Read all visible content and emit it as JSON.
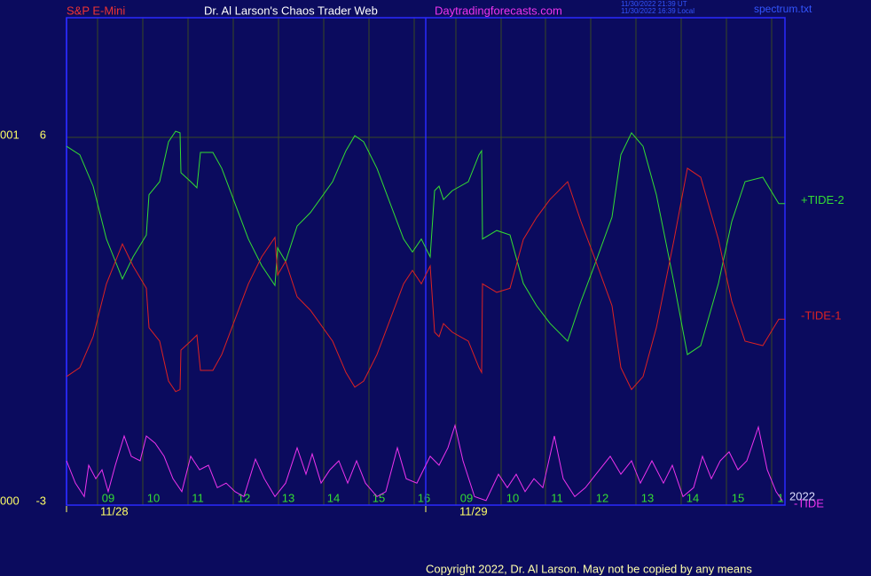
{
  "chart_data": {
    "type": "line",
    "title": "Dr. Al Larson's Chaos Trader Web",
    "instrument": "S&P E-Mini",
    "site": "Daytradingforecasts.com",
    "timestamps": [
      "11/30/2022 21:39 UT",
      "11/30/2022 16:39 Local"
    ],
    "file": "spectrum.txt",
    "copyright": "Copyright 2022, Dr. Al Larson. May not be copied by any means",
    "annotation": "2022",
    "y_prefixes": [
      "001",
      "000"
    ],
    "xlim": [
      0,
      810
    ],
    "ylim": [
      -3.04,
      8.94
    ],
    "yticks": [
      6,
      -3
    ],
    "xticks": [
      {
        "value": 47,
        "label": "09"
      },
      {
        "value": 98,
        "label": "10"
      },
      {
        "value": 148,
        "label": "11"
      },
      {
        "value": 200,
        "label": "12"
      },
      {
        "value": 250,
        "label": "13"
      },
      {
        "value": 301,
        "label": "14"
      },
      {
        "value": 352,
        "label": "15"
      },
      {
        "value": 403,
        "label": "16"
      },
      {
        "value": 451,
        "label": "09"
      },
      {
        "value": 503,
        "label": "10"
      },
      {
        "value": 553,
        "label": "11"
      },
      {
        "value": 604,
        "label": "12"
      },
      {
        "value": 655,
        "label": "13"
      },
      {
        "value": 706,
        "label": "14"
      },
      {
        "value": 757,
        "label": "15"
      },
      {
        "value": 805,
        "label": "1"
      }
    ],
    "xgrid": [
      35,
      86,
      137,
      188,
      239,
      290,
      341,
      392,
      439,
      490,
      540,
      591,
      642,
      693,
      744,
      795
    ],
    "days": [
      {
        "value": 0,
        "label": "11/28",
        "label_x": 38
      },
      {
        "value": 405,
        "label": "11/29",
        "label_x": 443
      }
    ],
    "grid": true,
    "series": [
      {
        "name": "+TIDE-2",
        "color": "#33dd33",
        "x": [
          0,
          15,
          30,
          45,
          63,
          75,
          90,
          93,
          105,
          115,
          123,
          128,
          129,
          140,
          147,
          151,
          165,
          175,
          190,
          205,
          220,
          235,
          238,
          247,
          260,
          275,
          300,
          315,
          325,
          335,
          350,
          365,
          380,
          390,
          400,
          410,
          415,
          420,
          425,
          435,
          453,
          465,
          468,
          469,
          485,
          500,
          515,
          530,
          545,
          565,
          580,
          595,
          615,
          625,
          637,
          650,
          665,
          685,
          700,
          715,
          735,
          750,
          765,
          785,
          803,
          810
        ],
        "values": [
          5.78,
          5.57,
          4.8,
          3.5,
          2.52,
          3.06,
          3.6,
          4.59,
          4.91,
          5.89,
          6.15,
          6.11,
          5.13,
          4.91,
          4.76,
          5.63,
          5.63,
          5.24,
          4.37,
          3.5,
          2.85,
          2.36,
          3.28,
          2.95,
          3.82,
          4.15,
          4.91,
          5.67,
          6.04,
          5.89,
          5.24,
          4.37,
          3.5,
          3.18,
          3.5,
          3.06,
          4.69,
          4.8,
          4.47,
          4.69,
          4.91,
          5.57,
          5.67,
          3.5,
          3.71,
          3.6,
          2.41,
          1.86,
          1.43,
          0.99,
          1.97,
          2.84,
          4.04,
          5.57,
          6.11,
          5.78,
          4.59,
          2.41,
          0.66,
          0.88,
          2.41,
          3.93,
          4.91,
          5.02,
          4.37,
          4.37
        ]
      },
      {
        "name": "-TIDE-1",
        "color": "#dd2222",
        "x": [
          0,
          15,
          30,
          45,
          63,
          75,
          90,
          93,
          105,
          115,
          123,
          128,
          129,
          140,
          147,
          151,
          165,
          175,
          190,
          205,
          220,
          235,
          238,
          247,
          260,
          275,
          300,
          315,
          325,
          335,
          350,
          365,
          380,
          390,
          400,
          410,
          415,
          420,
          425,
          435,
          453,
          465,
          468,
          469,
          485,
          500,
          515,
          530,
          545,
          565,
          580,
          595,
          615,
          625,
          637,
          650,
          665,
          685,
          700,
          715,
          735,
          750,
          765,
          785,
          803,
          810
        ],
        "values": [
          0.12,
          0.34,
          1.1,
          2.4,
          3.38,
          2.84,
          2.29,
          1.32,
          0.99,
          0.01,
          -0.25,
          -0.2,
          0.77,
          0.99,
          1.14,
          0.27,
          0.27,
          0.66,
          1.53,
          2.4,
          3.06,
          3.54,
          2.62,
          2.95,
          2.08,
          1.75,
          0.99,
          0.22,
          -0.14,
          0.01,
          0.66,
          1.53,
          2.4,
          2.73,
          2.4,
          2.84,
          1.21,
          1.1,
          1.42,
          1.21,
          0.99,
          0.34,
          0.22,
          2.4,
          2.19,
          2.29,
          3.49,
          4.03,
          4.47,
          4.91,
          3.93,
          3.06,
          1.86,
          0.34,
          -0.2,
          0.12,
          1.32,
          3.49,
          5.24,
          5.02,
          3.49,
          1.97,
          0.99,
          0.88,
          1.53,
          1.53
        ]
      },
      {
        "name": "-TIDE",
        "color": "#ee33ee",
        "x": [
          0,
          10,
          20,
          25,
          33,
          40,
          47,
          55,
          65,
          73,
          83,
          90,
          100,
          110,
          120,
          130,
          140,
          150,
          160,
          170,
          180,
          190,
          200,
          213,
          223,
          235,
          247,
          260,
          270,
          277,
          287,
          297,
          307,
          317,
          327,
          337,
          350,
          360,
          373,
          383,
          395,
          410,
          420,
          430,
          438,
          447,
          460,
          473,
          487,
          497,
          507,
          517,
          527,
          537,
          550,
          560,
          573,
          585,
          597,
          613,
          625,
          637,
          647,
          660,
          673,
          683,
          695,
          707,
          717,
          727,
          737,
          747,
          757,
          767,
          780,
          790,
          800,
          807
        ],
        "values": [
          -1.95,
          -2.5,
          -2.83,
          -2.06,
          -2.39,
          -2.17,
          -2.71,
          -2.06,
          -1.34,
          -1.84,
          -1.95,
          -1.34,
          -1.52,
          -1.84,
          -2.39,
          -2.71,
          -1.84,
          -2.17,
          -2.06,
          -2.61,
          -2.5,
          -2.71,
          -2.83,
          -1.91,
          -2.39,
          -2.83,
          -2.5,
          -1.63,
          -2.28,
          -1.78,
          -2.5,
          -2.17,
          -1.95,
          -2.5,
          -1.95,
          -2.5,
          -2.83,
          -2.71,
          -1.63,
          -2.39,
          -2.5,
          -1.84,
          -2.06,
          -1.63,
          -1.08,
          -1.95,
          -2.83,
          -2.93,
          -2.28,
          -2.61,
          -2.28,
          -2.71,
          -2.39,
          -2.61,
          -1.34,
          -2.39,
          -2.83,
          -2.61,
          -2.28,
          -1.84,
          -2.28,
          -1.95,
          -2.5,
          -1.95,
          -2.5,
          -2.06,
          -2.83,
          -2.61,
          -1.84,
          -2.39,
          -1.95,
          -1.73,
          -2.17,
          -1.95,
          -1.12,
          -2.17,
          -2.71,
          -2.93
        ]
      }
    ]
  }
}
